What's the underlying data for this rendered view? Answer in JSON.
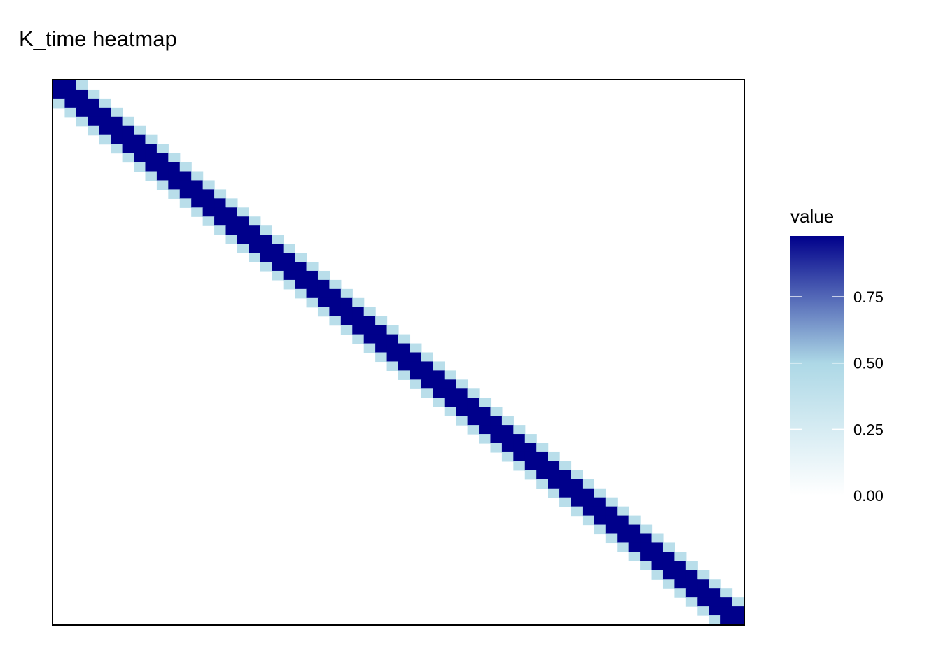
{
  "chart_data": {
    "type": "heatmap",
    "title": "K_time heatmap",
    "xlabel": "",
    "ylabel": "",
    "grid": false,
    "n": 60,
    "diagonal_values": [
      {
        "offset": 0,
        "value": 1.0
      },
      {
        "offset": 1,
        "value": 1.0
      },
      {
        "offset": 2,
        "value": 0.42
      }
    ],
    "off_band_value": 0.0,
    "legend": {
      "title": "value",
      "placement": "right",
      "ticks": [
        0.0,
        0.25,
        0.5,
        0.75
      ],
      "tick_labels": [
        "0.00",
        "0.25",
        "0.50",
        "0.75"
      ],
      "range": [
        0,
        0.98
      ],
      "gradient": [
        "#ffffff",
        "#add8e6",
        "#00008b"
      ]
    }
  }
}
